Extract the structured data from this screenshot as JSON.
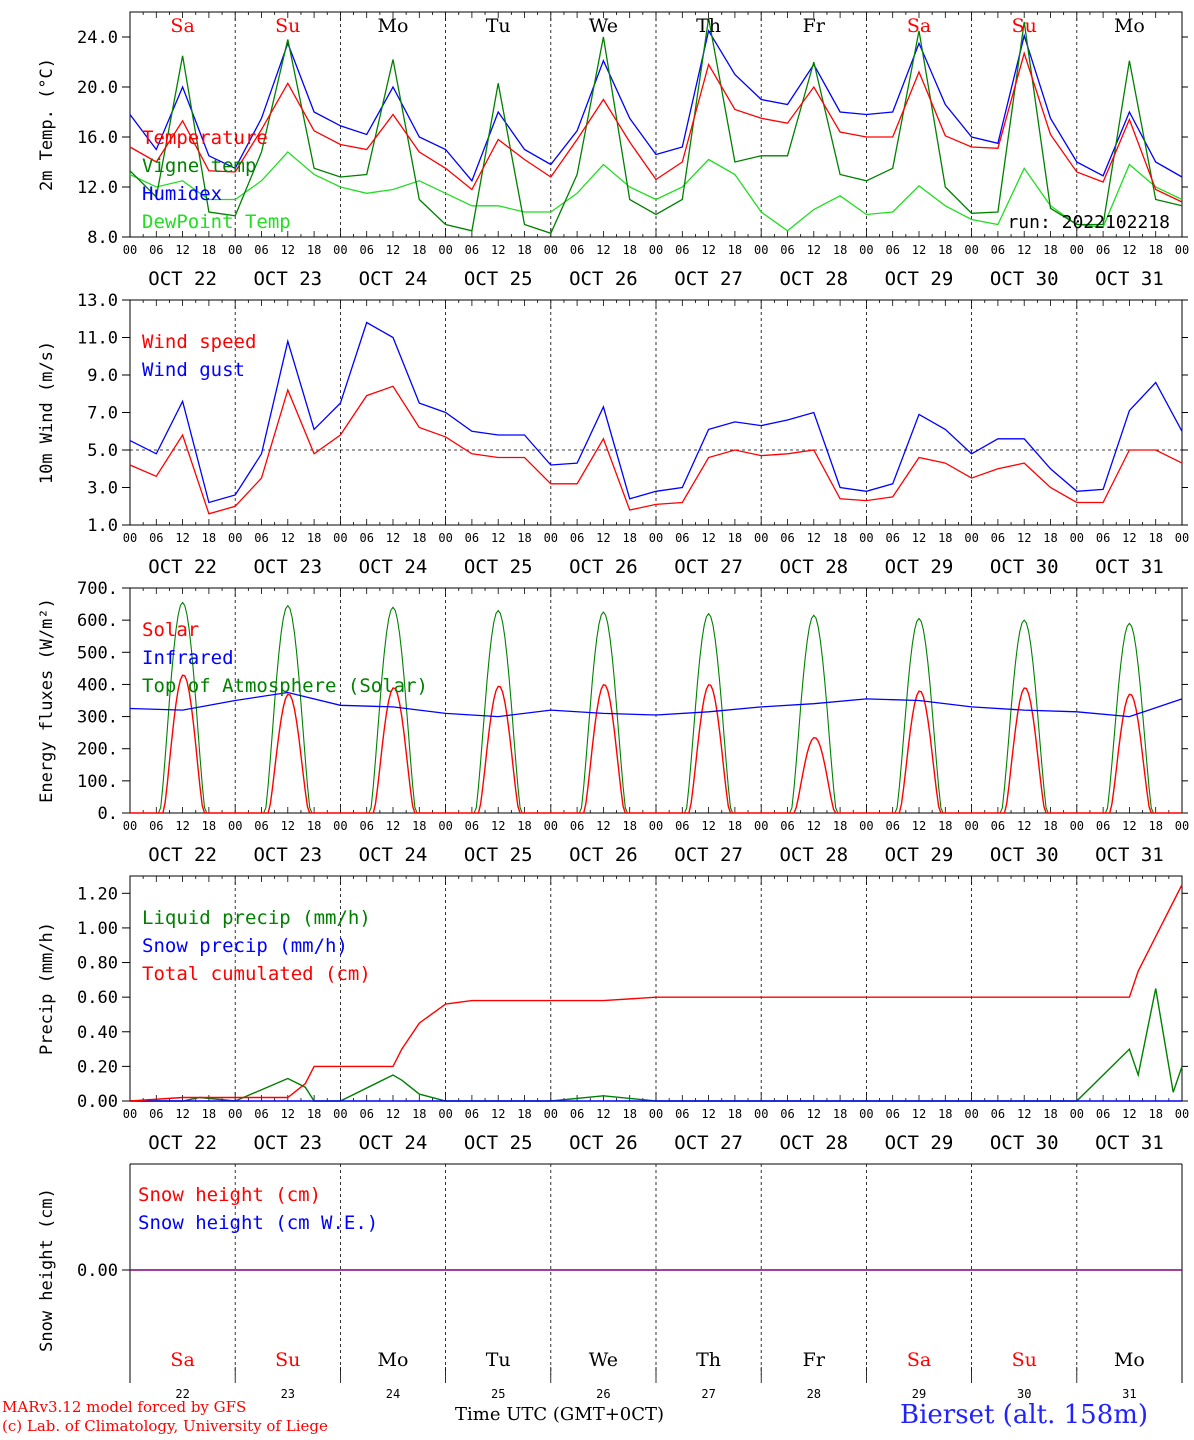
{
  "colors": {
    "red": "#ff0000",
    "blue": "#0000ff",
    "green": "#008000",
    "lime": "#22dd22",
    "purple": "#7f007f"
  },
  "days": [
    "22",
    "23",
    "24",
    "25",
    "26",
    "27",
    "28",
    "29",
    "30",
    "31"
  ],
  "month_labels": [
    "OCT 22",
    "OCT 23",
    "OCT 24",
    "OCT 25",
    "OCT 26",
    "OCT 27",
    "OCT 28",
    "OCT 29",
    "OCT 30",
    "OCT 31"
  ],
  "weekdays": [
    "Sa",
    "Su",
    "Mo",
    "Tu",
    "We",
    "Th",
    "Fr",
    "Sa",
    "Su",
    "Mo"
  ],
  "weekend": [
    true,
    true,
    false,
    false,
    false,
    false,
    false,
    true,
    true,
    false
  ],
  "hour_ticks": [
    "00",
    "06",
    "12",
    "18"
  ],
  "hour_tick_end": "00",
  "run_label": "run: 2022102218",
  "footer": {
    "model": "MARv3.12 model forced by GFS",
    "lab": "(c) Lab. of Climatology, University of Liege",
    "time_label": "Time UTC (GMT+0CT)",
    "station": "Bierset (alt. 158m)"
  },
  "chart_data": [
    {
      "type": "line",
      "ylabel": "2m Temp. (°C)",
      "ylim": [
        8,
        26
      ],
      "yticks": [
        "8.0",
        "12.0",
        "16.0",
        "20.0",
        "24.0"
      ],
      "x_hours": [
        0,
        6,
        12,
        18,
        24,
        30,
        36,
        42,
        48,
        54,
        60,
        66,
        72,
        78,
        84,
        90,
        96,
        102,
        108,
        114,
        120,
        126,
        132,
        138,
        144,
        150,
        156,
        162,
        168,
        174,
        180,
        186,
        192,
        198,
        204,
        210,
        216,
        222,
        228,
        234,
        240
      ],
      "series": [
        {
          "name": "Temperature",
          "color": "#ff0000",
          "values": [
            15.2,
            14.0,
            17.3,
            13.3,
            13.2,
            16.6,
            20.3,
            16.5,
            15.4,
            15.0,
            17.8,
            14.8,
            13.5,
            11.8,
            15.8,
            14.2,
            12.8,
            15.8,
            19.0,
            15.6,
            12.6,
            14.0,
            21.8,
            18.2,
            17.5,
            17.1,
            20.0,
            16.4,
            16.0,
            16.0,
            21.2,
            16.1,
            15.2,
            15.1,
            22.7,
            16.2,
            13.2,
            12.4,
            17.4,
            11.8,
            10.8
          ]
        },
        {
          "name": "Vigne temp",
          "color": "#008000",
          "values": [
            13.3,
            11.2,
            22.5,
            10.0,
            9.7,
            14.8,
            23.8,
            13.5,
            12.8,
            13.0,
            22.2,
            11.0,
            9.0,
            8.5,
            20.3,
            9.0,
            8.3,
            13.0,
            24.0,
            11.0,
            9.8,
            11.0,
            25.5,
            14.0,
            14.5,
            14.5,
            22.0,
            13.0,
            12.5,
            13.5,
            24.5,
            12.0,
            9.9,
            10.0,
            25.2,
            10.3,
            9.0,
            9.0,
            22.1,
            11.0,
            10.5
          ]
        },
        {
          "name": "Humidex",
          "color": "#0000ff",
          "values": [
            17.8,
            15.0,
            20.0,
            14.5,
            13.5,
            17.5,
            23.5,
            18.0,
            16.9,
            16.2,
            20.0,
            16.0,
            15.0,
            12.5,
            18.0,
            15.0,
            13.8,
            16.5,
            22.1,
            17.5,
            14.6,
            15.2,
            24.5,
            21.0,
            19.0,
            18.6,
            21.8,
            18.0,
            17.8,
            18.0,
            23.5,
            18.6,
            16.0,
            15.5,
            24.1,
            17.5,
            14.0,
            12.9,
            18.0,
            14.0,
            12.8
          ]
        },
        {
          "name": "DewPoint Temp",
          "color": "#22dd22",
          "values": [
            13.0,
            12.0,
            12.5,
            11.0,
            11.0,
            12.5,
            14.8,
            13.0,
            12.0,
            11.5,
            11.8,
            12.5,
            11.5,
            10.5,
            10.5,
            10.0,
            10.0,
            11.5,
            13.8,
            12.0,
            11.0,
            12.0,
            14.2,
            13.0,
            10.0,
            8.5,
            10.2,
            11.3,
            9.8,
            10.0,
            12.1,
            10.5,
            9.4,
            9.0,
            13.5,
            10.5,
            9.0,
            8.8,
            13.8,
            12.0,
            11.0
          ]
        }
      ],
      "annotations": [
        "run: 2022102218"
      ]
    },
    {
      "type": "line",
      "ylabel": "10m Wind (m/s)",
      "ylim": [
        1,
        13
      ],
      "yticks": [
        "1.0",
        "3.0",
        "5.0",
        "7.0",
        "9.0",
        "11.0",
        "13.0"
      ],
      "reference_line": 5.0,
      "x_hours": [
        0,
        6,
        12,
        18,
        24,
        30,
        36,
        42,
        48,
        54,
        60,
        66,
        72,
        78,
        84,
        90,
        96,
        102,
        108,
        114,
        120,
        126,
        132,
        138,
        144,
        150,
        156,
        162,
        168,
        174,
        180,
        186,
        192,
        198,
        204,
        210,
        216,
        222,
        228,
        234,
        240
      ],
      "series": [
        {
          "name": "Wind speed",
          "color": "#ff0000",
          "values": [
            4.2,
            3.6,
            5.8,
            1.6,
            2.0,
            3.5,
            8.2,
            4.8,
            5.8,
            7.9,
            8.4,
            6.2,
            5.7,
            4.8,
            4.6,
            4.6,
            3.2,
            3.2,
            5.6,
            1.8,
            2.1,
            2.2,
            4.6,
            5.0,
            4.7,
            4.8,
            5.0,
            2.4,
            2.3,
            2.5,
            4.6,
            4.3,
            3.5,
            4.0,
            4.3,
            3.0,
            2.2,
            2.2,
            5.0,
            5.0,
            4.3
          ]
        },
        {
          "name": "Wind gust",
          "color": "#0000ff",
          "values": [
            5.5,
            4.8,
            7.6,
            2.2,
            2.6,
            4.8,
            10.8,
            6.1,
            7.5,
            11.8,
            11.0,
            7.5,
            7.0,
            6.0,
            5.8,
            5.8,
            4.2,
            4.3,
            7.3,
            2.4,
            2.8,
            3.0,
            6.1,
            6.5,
            6.3,
            6.6,
            7.0,
            3.0,
            2.8,
            3.2,
            6.9,
            6.1,
            4.8,
            5.6,
            5.6,
            4.0,
            2.8,
            2.9,
            7.1,
            8.6,
            6.0
          ]
        }
      ]
    },
    {
      "type": "line",
      "ylabel": "Energy fluxes (W/m²)",
      "ylim": [
        0,
        700
      ],
      "yticks": [
        "0.",
        "100.",
        "200.",
        "300.",
        "400.",
        "500.",
        "600.",
        "700."
      ],
      "daily_peaks": {
        "Solar": [
          430,
          370,
          390,
          395,
          400,
          400,
          235,
          380,
          390,
          370
        ],
        "Top of Atmosphere (Solar)": [
          655,
          645,
          640,
          630,
          625,
          620,
          615,
          605,
          600,
          590
        ]
      },
      "x_hours": [
        0,
        12,
        24,
        36,
        48,
        60,
        72,
        84,
        96,
        108,
        120,
        132,
        144,
        156,
        168,
        180,
        192,
        204,
        216,
        228,
        240
      ],
      "series": [
        {
          "name": "Solar",
          "color": "#ff0000"
        },
        {
          "name": "Infrared",
          "color": "#0000ff",
          "values": [
            325,
            320,
            350,
            375,
            335,
            330,
            310,
            300,
            320,
            310,
            305,
            315,
            330,
            340,
            355,
            350,
            330,
            320,
            315,
            300,
            355
          ]
        },
        {
          "name": "Top of Atmosphere (Solar)",
          "color": "#008000"
        }
      ]
    },
    {
      "type": "line",
      "ylabel": "Precip (mm/h)",
      "ylim": [
        0,
        1.3
      ],
      "yticks": [
        "0.00",
        "0.20",
        "0.40",
        "0.60",
        "0.80",
        "1.00",
        "1.20"
      ],
      "x_hours": [
        0,
        12,
        16,
        24,
        36,
        40,
        42,
        48,
        60,
        62,
        66,
        72,
        78,
        84,
        96,
        108,
        120,
        132,
        144,
        168,
        192,
        216,
        228,
        230,
        234,
        238,
        240
      ],
      "series": [
        {
          "name": "Liquid precip (mm/h)",
          "color": "#008000",
          "values": [
            0,
            0,
            0.02,
            0,
            0.13,
            0.08,
            0,
            0,
            0.15,
            0.12,
            0.04,
            0,
            0,
            0,
            0,
            0.03,
            0,
            0,
            0,
            0,
            0,
            0,
            0.3,
            0.15,
            0.65,
            0.05,
            0.2
          ]
        },
        {
          "name": "Snow precip (mm/h)",
          "color": "#0000ff",
          "values": [
            0,
            0,
            0,
            0,
            0,
            0,
            0,
            0,
            0,
            0,
            0,
            0,
            0,
            0,
            0,
            0,
            0,
            0,
            0,
            0,
            0,
            0,
            0,
            0,
            0,
            0,
            0
          ]
        },
        {
          "name": "Total cumulated (cm)",
          "color": "#ff0000",
          "values": [
            0,
            0.02,
            0.02,
            0.02,
            0.02,
            0.1,
            0.2,
            0.2,
            0.2,
            0.3,
            0.45,
            0.56,
            0.58,
            0.58,
            0.58,
            0.58,
            0.6,
            0.6,
            0.6,
            0.6,
            0.6,
            0.6,
            0.6,
            0.75,
            0.95,
            1.15,
            1.25
          ]
        }
      ]
    },
    {
      "type": "line",
      "ylabel": "Snow height (cm)",
      "yticks": [
        "0.00"
      ],
      "series": [
        {
          "name": "Snow height (cm)",
          "color": "#ff0000",
          "values": [
            0,
            0
          ]
        },
        {
          "name": "Snow height (cm W.E.)",
          "color": "#0000ff",
          "values": [
            0,
            0
          ]
        }
      ]
    }
  ]
}
